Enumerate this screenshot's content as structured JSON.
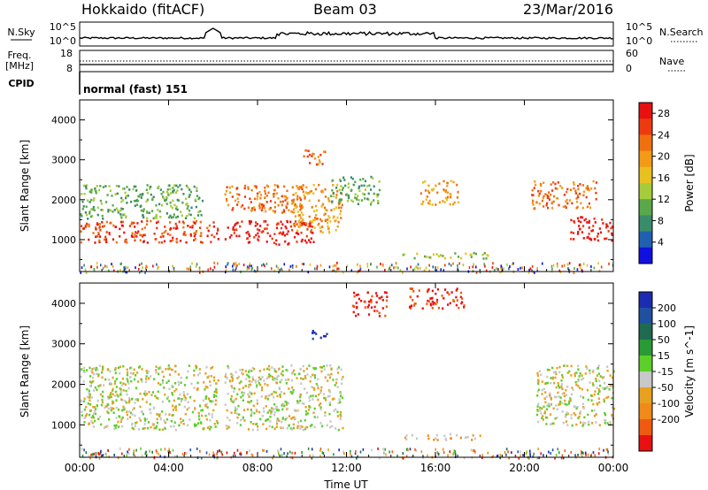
{
  "header": {
    "station": "Hokkaido (fitACF)",
    "beam": "Beam 03",
    "date": "23/Mar/2016"
  },
  "status_panels": {
    "nsky": {
      "label": "N.Sky",
      "ticks": [
        "10^5",
        "10^0"
      ],
      "right_ticks": [
        "10^5",
        "10^0"
      ],
      "right_label": "N.Search"
    },
    "freq": {
      "label_line1": "Freq.",
      "label_line2": "[MHz]",
      "ticks": [
        "18",
        "8"
      ],
      "right_ticks": [
        "60",
        "0"
      ],
      "right_label": "Nave"
    },
    "cpid": {
      "label": "CPID",
      "value": "normal (fast) 151"
    }
  },
  "colors": {
    "power": [
      "#1010e0",
      "#2060b0",
      "#3a8c6a",
      "#5aa84a",
      "#a6cc3c",
      "#e8c020",
      "#f39a18",
      "#f07010",
      "#ee3a10",
      "#e81010"
    ],
    "velocity": [
      "#1c2cb0",
      "#2050a0",
      "#1f6a50",
      "#2a9a35",
      "#5ccf2a",
      "#c8c8c8",
      "#e8a020",
      "#f08a18",
      "#f05a10",
      "#e81010"
    ]
  },
  "chart_data": [
    {
      "type": "heatmap",
      "name": "Power",
      "xlabel": "",
      "ylabel": "Slant Range [km]",
      "ylim": [
        200,
        4500
      ],
      "xlim": [
        0,
        24
      ],
      "y_ticks": [
        1000,
        2000,
        3000,
        4000
      ],
      "x_ticks": [
        0,
        4,
        8,
        12,
        16,
        20,
        24
      ],
      "colorbar": {
        "label": "Power [dB]",
        "ticks": [
          4,
          8,
          12,
          16,
          20,
          24,
          28
        ],
        "range": [
          0,
          30
        ]
      },
      "regions": [
        {
          "t0": 0.0,
          "t1": 6.2,
          "r0": 950,
          "r1": 1500,
          "level": 8
        },
        {
          "t0": 0.0,
          "t1": 5.5,
          "r0": 1550,
          "r1": 2400,
          "level": 3
        },
        {
          "t0": 6.5,
          "t1": 10.5,
          "r0": 900,
          "r1": 1500,
          "level": 9
        },
        {
          "t0": 6.5,
          "t1": 10.0,
          "r0": 1700,
          "r1": 2400,
          "level": 7
        },
        {
          "t0": 9.5,
          "t1": 11.8,
          "r0": 1200,
          "r1": 2400,
          "level": 6
        },
        {
          "t0": 10.0,
          "t1": 11.0,
          "r0": 2900,
          "r1": 3300,
          "level": 7
        },
        {
          "t0": 11.2,
          "t1": 13.5,
          "r0": 1900,
          "r1": 2600,
          "level": 3
        },
        {
          "t0": 15.3,
          "t1": 17.0,
          "r0": 1900,
          "r1": 2500,
          "level": 6
        },
        {
          "t0": 14.5,
          "t1": 18.5,
          "r0": 550,
          "r1": 700,
          "level": 4
        },
        {
          "t0": 20.3,
          "t1": 23.2,
          "r0": 1800,
          "r1": 2500,
          "level": 7
        },
        {
          "t0": 22.0,
          "t1": 24.0,
          "r0": 1000,
          "r1": 1600,
          "level": 9
        }
      ]
    },
    {
      "type": "heatmap",
      "name": "Velocity",
      "xlabel": "Time UT",
      "ylabel": "Slant Range [km]",
      "ylim": [
        200,
        4500
      ],
      "xlim": [
        0,
        24
      ],
      "y_ticks": [
        1000,
        2000,
        3000,
        4000
      ],
      "x_ticks": [
        0,
        4,
        8,
        12,
        16,
        20,
        24
      ],
      "x_tick_labels": [
        "00:00",
        "04:00",
        "08:00",
        "12:00",
        "16:00",
        "20:00",
        "00:00"
      ],
      "colorbar": {
        "label": "Velocity [m s^-1]",
        "ticks": [
          200,
          100,
          50,
          15,
          -15,
          -50,
          -100,
          -200
        ],
        "range": [
          -250,
          250
        ]
      },
      "regions": [
        {
          "t0": 0.0,
          "t1": 6.2,
          "r0": 900,
          "r1": 2500,
          "level": 5
        },
        {
          "t0": 6.5,
          "t1": 11.8,
          "r0": 900,
          "r1": 2500,
          "level": 5
        },
        {
          "t0": 10.3,
          "t1": 11.2,
          "r0": 3150,
          "r1": 3350,
          "level": 0
        },
        {
          "t0": 12.2,
          "t1": 13.8,
          "r0": 3700,
          "r1": 4300,
          "level": 9
        },
        {
          "t0": 14.8,
          "t1": 17.3,
          "r0": 3900,
          "r1": 4400,
          "level": 9
        },
        {
          "t0": 14.5,
          "t1": 18.0,
          "r0": 650,
          "r1": 800,
          "level": 6
        },
        {
          "t0": 20.5,
          "t1": 24.0,
          "r0": 1000,
          "r1": 2500,
          "level": 5
        }
      ]
    }
  ]
}
